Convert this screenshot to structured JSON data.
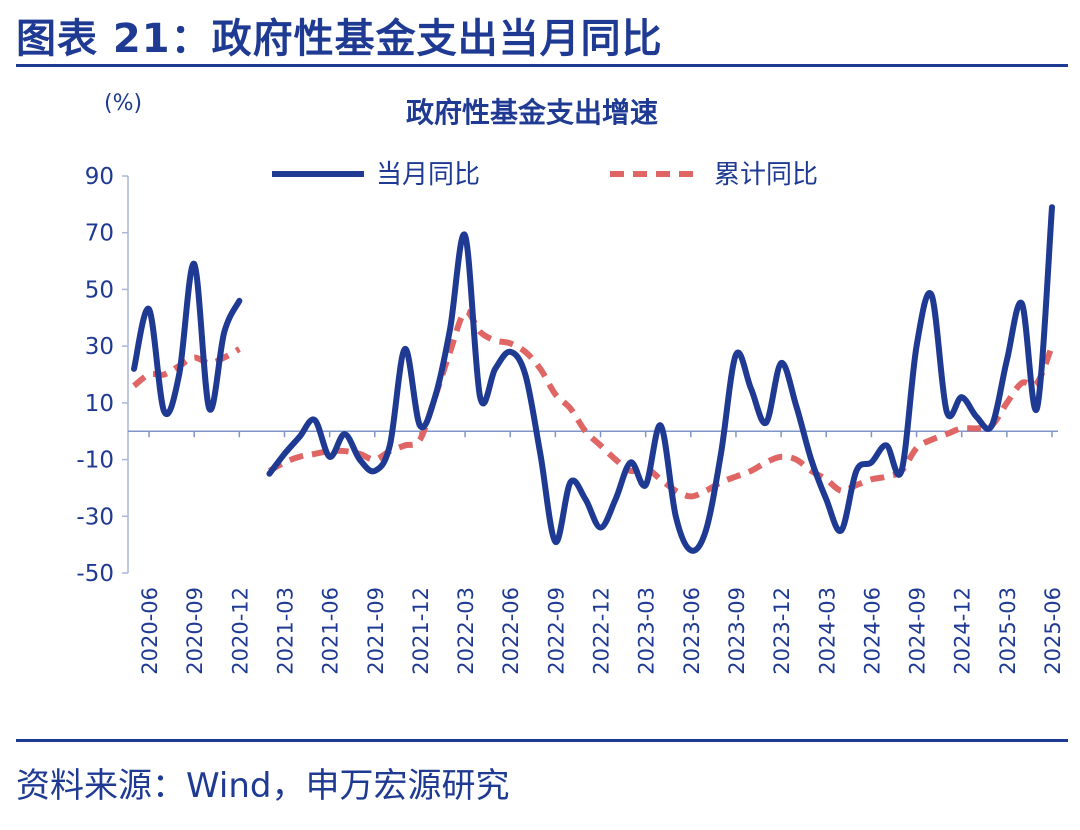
{
  "figure_title": "图表 21：政府性基金支出当月同比",
  "source_text": "资料来源：Wind，申万宏源研究",
  "colors": {
    "title": "#1f3a93",
    "series_monthly": "#1f3a93",
    "series_cumulative": "#e06666"
  },
  "chart_data": {
    "type": "line",
    "title": "政府性基金支出增速",
    "ylabel": "(%)",
    "xlabel": "",
    "ylim": [
      -50,
      90
    ],
    "yticks": [
      90,
      70,
      50,
      30,
      10,
      -10,
      -30,
      -50
    ],
    "x": [
      "2020-05",
      "2020-06",
      "2020-07",
      "2020-08",
      "2020-09",
      "2020-10",
      "2020-11",
      "2020-12",
      "2021-01",
      "2021-02",
      "2021-03",
      "2021-04",
      "2021-05",
      "2021-06",
      "2021-07",
      "2021-08",
      "2021-09",
      "2021-10",
      "2021-11",
      "2021-12",
      "2022-01",
      "2022-02",
      "2022-03",
      "2022-04",
      "2022-05",
      "2022-06",
      "2022-07",
      "2022-08",
      "2022-09",
      "2022-10",
      "2022-11",
      "2022-12",
      "2023-01",
      "2023-02",
      "2023-03",
      "2023-04",
      "2023-05",
      "2023-06",
      "2023-07",
      "2023-08",
      "2023-09",
      "2023-10",
      "2023-11",
      "2023-12",
      "2024-01",
      "2024-02",
      "2024-03",
      "2024-04",
      "2024-05",
      "2024-06",
      "2024-07",
      "2024-08",
      "2024-09",
      "2024-10",
      "2024-11",
      "2024-12",
      "2025-01",
      "2025-02",
      "2025-03",
      "2025-04",
      "2025-05",
      "2025-06"
    ],
    "xtick_labels": [
      "2020-06",
      "2020-09",
      "2020-12",
      "2021-03",
      "2021-06",
      "2021-09",
      "2021-12",
      "2022-03",
      "2022-06",
      "2022-09",
      "2022-12",
      "2023-03",
      "2023-06",
      "2023-09",
      "2023-12",
      "2024-03",
      "2024-06",
      "2024-09",
      "2024-12",
      "2025-03",
      "2025-06"
    ],
    "legend_position": "top",
    "series": [
      {
        "name": "当月同比",
        "style": "solid",
        "values": [
          22,
          43,
          7,
          20,
          59,
          8,
          35,
          46,
          null,
          -15,
          -8,
          -2,
          4,
          -9,
          -1,
          -10,
          -14,
          -5,
          29,
          2,
          12,
          36,
          69,
          12,
          22,
          28,
          20,
          -8,
          -39,
          -18,
          -24,
          -34,
          -24,
          -11,
          -19,
          2,
          -30,
          -42,
          -35,
          -8,
          27,
          15,
          3,
          24,
          9,
          -10,
          -24,
          -35,
          -14,
          -11,
          -5,
          -14,
          30,
          48,
          7,
          12,
          5,
          2,
          25,
          45,
          8,
          79
        ]
      },
      {
        "name": "累计同比",
        "style": "dashed",
        "values": [
          16,
          20,
          20,
          23,
          26,
          24,
          26,
          29,
          null,
          -14,
          -11,
          -9,
          -8,
          -7,
          -7,
          -8,
          -10,
          -7,
          -5,
          -3,
          12,
          28,
          42,
          35,
          32,
          31,
          28,
          22,
          13,
          8,
          0,
          -5,
          -10,
          -14,
          -13,
          -17,
          -21,
          -23,
          -21,
          -18,
          -16,
          -14,
          -11,
          -9,
          -10,
          -14,
          -17,
          -21,
          -19,
          -17,
          -16,
          -14,
          -6,
          -3,
          -1,
          1,
          1,
          2,
          10,
          17,
          17,
          30
        ]
      }
    ]
  }
}
